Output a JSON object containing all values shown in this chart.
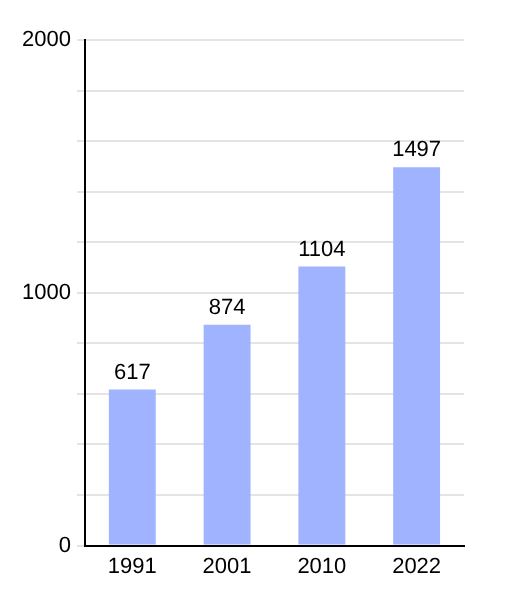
{
  "chart_data": {
    "type": "bar",
    "categories": [
      "1991",
      "2001",
      "2010",
      "2022"
    ],
    "values": [
      617,
      874,
      1104,
      1497
    ],
    "color": "#9fb3ff",
    "ylim": [
      0,
      2000
    ],
    "yticks": [
      0,
      {
        "value": 200,
        "label": null
      },
      {
        "value": 400,
        "label": null
      },
      {
        "value": 600,
        "label": null
      },
      {
        "value": 800,
        "label": null
      },
      1000,
      {
        "value": 1200,
        "label": null
      },
      {
        "value": 1400,
        "label": null
      },
      {
        "value": 1600,
        "label": null
      },
      {
        "value": 1800,
        "label": null
      },
      2000
    ],
    "grid": "y",
    "data_labels": true
  }
}
